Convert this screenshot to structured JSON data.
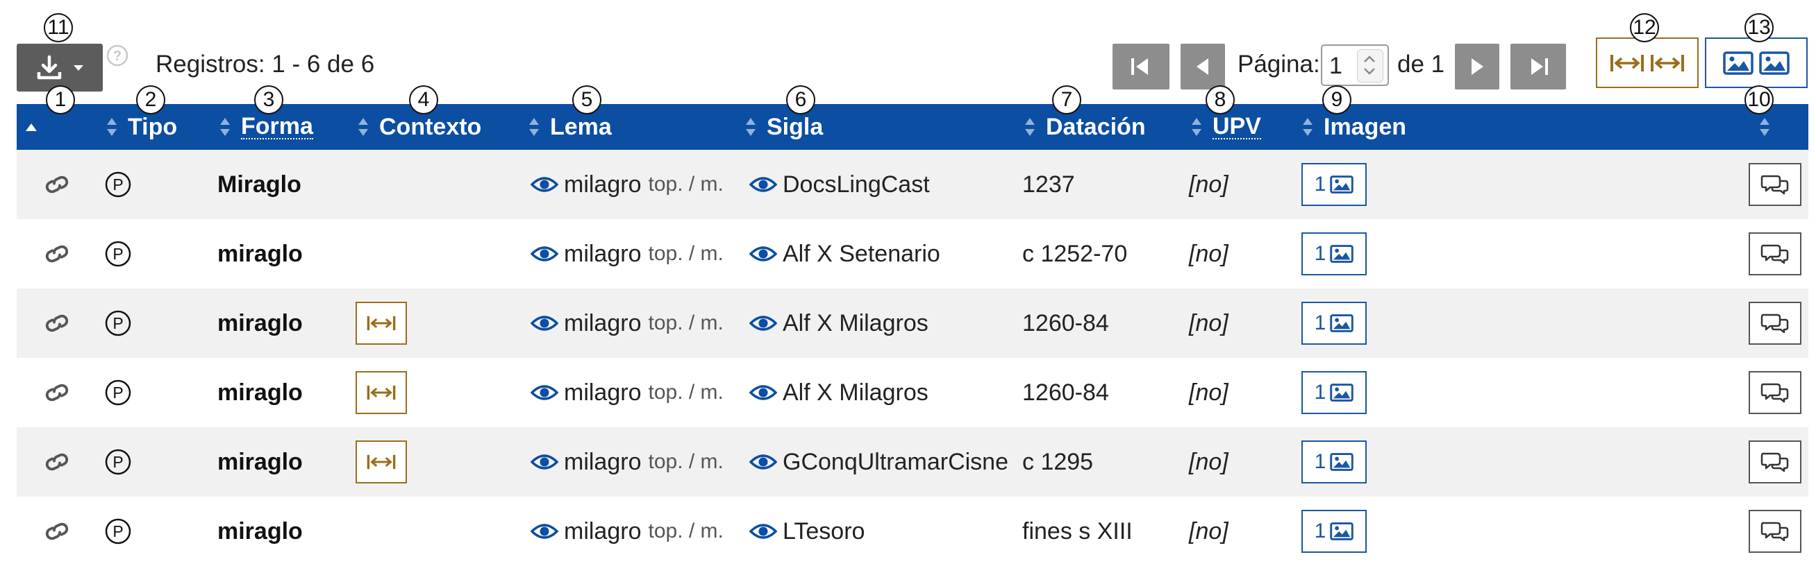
{
  "toolbar": {
    "download_icon": "download-icon",
    "help_icon": "help-icon",
    "records_text": "Registros: 1 - 6 de 6",
    "pagination": {
      "page_label": "Página:",
      "current_page": "1",
      "of_label": "de 1"
    }
  },
  "markers": [
    "1",
    "2",
    "3",
    "4",
    "5",
    "6",
    "7",
    "8",
    "9",
    "10",
    "11",
    "12",
    "13"
  ],
  "table": {
    "headers": {
      "tipo": "Tipo",
      "forma": "Forma",
      "contexto": "Contexto",
      "lema": "Lema",
      "sigla": "Sigla",
      "datacion": "Datación",
      "upv": "UPV",
      "imagen": "Imagen"
    },
    "rows": [
      {
        "tipo": "P",
        "forma": "Miraglo",
        "contexto": false,
        "lema": "milagro",
        "lema_cat": "top. / m.",
        "sigla": "DocsLingCast",
        "datacion": "1237",
        "upv": "[no]",
        "imagen_count": "1"
      },
      {
        "tipo": "P",
        "forma": "miraglo",
        "contexto": false,
        "lema": "milagro",
        "lema_cat": "top. / m.",
        "sigla": "Alf X Setenario",
        "datacion": "c 1252-70",
        "upv": "[no]",
        "imagen_count": "1"
      },
      {
        "tipo": "P",
        "forma": "miraglo",
        "contexto": true,
        "lema": "milagro",
        "lema_cat": "top. / m.",
        "sigla": "Alf X Milagros",
        "datacion": "1260-84",
        "upv": "[no]",
        "imagen_count": "1"
      },
      {
        "tipo": "P",
        "forma": "miraglo",
        "contexto": true,
        "lema": "milagro",
        "lema_cat": "top. / m.",
        "sigla": "Alf X Milagros",
        "datacion": "1260-84",
        "upv": "[no]",
        "imagen_count": "1"
      },
      {
        "tipo": "P",
        "forma": "miraglo",
        "contexto": true,
        "lema": "milagro",
        "lema_cat": "top. / m.",
        "sigla": "GConqUltramarCisne",
        "datacion": "c 1295",
        "upv": "[no]",
        "imagen_count": "1"
      },
      {
        "tipo": "P",
        "forma": "miraglo",
        "contexto": false,
        "lema": "milagro",
        "lema_cat": "top. / m.",
        "sigla": "LTesoro",
        "datacion": "fines s XIII",
        "upv": "[no]",
        "imagen_count": "1"
      }
    ]
  },
  "colors": {
    "header_bg": "#0b4ea2",
    "context_accent": "#9b6d1a",
    "image_accent": "#1a56a6",
    "nav_button": "#8d8d8d",
    "download_button": "#5c5c5c"
  }
}
